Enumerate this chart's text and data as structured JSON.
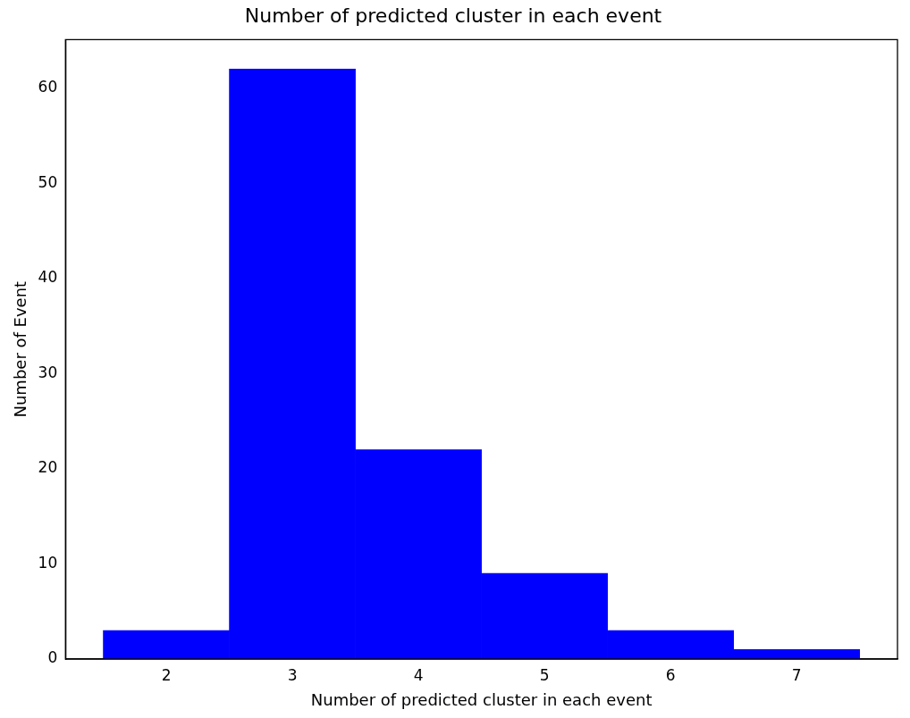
{
  "chart_data": {
    "type": "histogram",
    "title": "Number of predicted cluster in each event",
    "xlabel": "Number of predicted cluster in each event",
    "ylabel": "Number of Event",
    "bins": [
      1.5,
      2.5,
      3.5,
      4.5,
      5.5,
      6.5,
      7.5
    ],
    "values": [
      3,
      62,
      22,
      9,
      3,
      1
    ],
    "color": "#0000ff",
    "xlim": [
      1.2,
      7.8
    ],
    "xticks": [
      2,
      3,
      4,
      5,
      6,
      7
    ],
    "ylim": [
      0,
      65.1
    ],
    "yticks": [
      0,
      10,
      20,
      30,
      40,
      50,
      60
    ],
    "grid": false,
    "legend": false
  }
}
